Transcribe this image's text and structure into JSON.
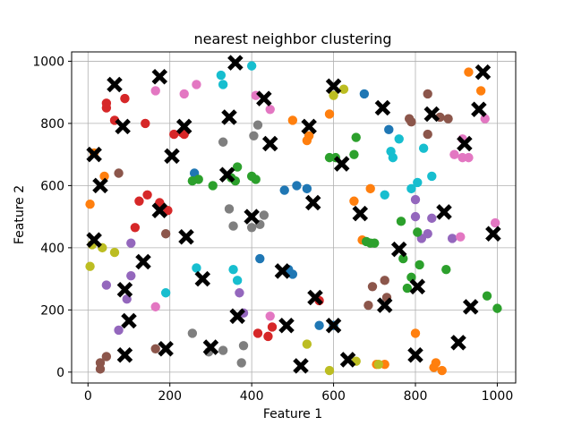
{
  "chart_data": {
    "type": "scatter",
    "title": "nearest neighbor clustering",
    "xlabel": "Feature 1",
    "ylabel": "Feature 2",
    "xlim": [
      -40,
      1045
    ],
    "ylim": [
      -35,
      1030
    ],
    "xticks": [
      0,
      200,
      400,
      600,
      800,
      1000
    ],
    "yticks": [
      0,
      200,
      400,
      600,
      800,
      1000
    ],
    "xtick_labels": [
      "0",
      "200",
      "400",
      "600",
      "800",
      "1000"
    ],
    "ytick_labels": [
      "0",
      "200",
      "400",
      "600",
      "800",
      "1000"
    ],
    "grid": true,
    "legend": "none",
    "colors": {
      "blue": "#1f77b4",
      "orange": "#ff7f0e",
      "green": "#2ca02c",
      "red": "#d62728",
      "purple": "#9467bd",
      "brown": "#8c564b",
      "pink": "#e377c2",
      "gray": "#7f7f7f",
      "olive": "#bcbd22",
      "cyan": "#17becf",
      "centroid": "#000000"
    },
    "points": [
      {
        "x": 5,
        "y": 540,
        "c": "orange"
      },
      {
        "x": 40,
        "y": 630,
        "c": "orange"
      },
      {
        "x": 15,
        "y": 705,
        "c": "orange"
      },
      {
        "x": 500,
        "y": 810,
        "c": "orange"
      },
      {
        "x": 535,
        "y": 745,
        "c": "orange"
      },
      {
        "x": 540,
        "y": 760,
        "c": "orange"
      },
      {
        "x": 590,
        "y": 830,
        "c": "orange"
      },
      {
        "x": 650,
        "y": 550,
        "c": "orange"
      },
      {
        "x": 670,
        "y": 425,
        "c": "orange"
      },
      {
        "x": 690,
        "y": 590,
        "c": "orange"
      },
      {
        "x": 705,
        "y": 25,
        "c": "orange"
      },
      {
        "x": 725,
        "y": 25,
        "c": "orange"
      },
      {
        "x": 800,
        "y": 125,
        "c": "orange"
      },
      {
        "x": 845,
        "y": 15,
        "c": "orange"
      },
      {
        "x": 850,
        "y": 30,
        "c": "orange"
      },
      {
        "x": 865,
        "y": 5,
        "c": "orange"
      },
      {
        "x": 930,
        "y": 965,
        "c": "orange"
      },
      {
        "x": 960,
        "y": 905,
        "c": "orange"
      },
      {
        "x": 45,
        "y": 850,
        "c": "red"
      },
      {
        "x": 45,
        "y": 865,
        "c": "red"
      },
      {
        "x": 65,
        "y": 810,
        "c": "red"
      },
      {
        "x": 90,
        "y": 880,
        "c": "red"
      },
      {
        "x": 140,
        "y": 800,
        "c": "red"
      },
      {
        "x": 210,
        "y": 765,
        "c": "red"
      },
      {
        "x": 230,
        "y": 770,
        "c": "red"
      },
      {
        "x": 235,
        "y": 765,
        "c": "red"
      },
      {
        "x": 115,
        "y": 465,
        "c": "red"
      },
      {
        "x": 125,
        "y": 550,
        "c": "red"
      },
      {
        "x": 145,
        "y": 570,
        "c": "red"
      },
      {
        "x": 175,
        "y": 545,
        "c": "red"
      },
      {
        "x": 195,
        "y": 520,
        "c": "red"
      },
      {
        "x": 415,
        "y": 125,
        "c": "red"
      },
      {
        "x": 440,
        "y": 115,
        "c": "red"
      },
      {
        "x": 450,
        "y": 145,
        "c": "red"
      },
      {
        "x": 565,
        "y": 230,
        "c": "red"
      },
      {
        "x": 30,
        "y": 30,
        "c": "brown"
      },
      {
        "x": 30,
        "y": 10,
        "c": "brown"
      },
      {
        "x": 45,
        "y": 50,
        "c": "brown"
      },
      {
        "x": 75,
        "y": 640,
        "c": "brown"
      },
      {
        "x": 165,
        "y": 75,
        "c": "brown"
      },
      {
        "x": 190,
        "y": 445,
        "c": "brown"
      },
      {
        "x": 685,
        "y": 215,
        "c": "brown"
      },
      {
        "x": 695,
        "y": 275,
        "c": "brown"
      },
      {
        "x": 725,
        "y": 295,
        "c": "brown"
      },
      {
        "x": 730,
        "y": 240,
        "c": "brown"
      },
      {
        "x": 785,
        "y": 815,
        "c": "brown"
      },
      {
        "x": 790,
        "y": 805,
        "c": "brown"
      },
      {
        "x": 830,
        "y": 895,
        "c": "brown"
      },
      {
        "x": 830,
        "y": 765,
        "c": "brown"
      },
      {
        "x": 860,
        "y": 820,
        "c": "brown"
      },
      {
        "x": 880,
        "y": 815,
        "c": "brown"
      },
      {
        "x": 45,
        "y": 280,
        "c": "purple"
      },
      {
        "x": 75,
        "y": 135,
        "c": "purple"
      },
      {
        "x": 95,
        "y": 235,
        "c": "purple"
      },
      {
        "x": 105,
        "y": 310,
        "c": "purple"
      },
      {
        "x": 105,
        "y": 415,
        "c": "purple"
      },
      {
        "x": 370,
        "y": 255,
        "c": "purple"
      },
      {
        "x": 380,
        "y": 190,
        "c": "purple"
      },
      {
        "x": 800,
        "y": 555,
        "c": "purple"
      },
      {
        "x": 800,
        "y": 500,
        "c": "purple"
      },
      {
        "x": 815,
        "y": 430,
        "c": "purple"
      },
      {
        "x": 830,
        "y": 445,
        "c": "purple"
      },
      {
        "x": 840,
        "y": 495,
        "c": "purple"
      },
      {
        "x": 890,
        "y": 430,
        "c": "purple"
      },
      {
        "x": 165,
        "y": 905,
        "c": "pink"
      },
      {
        "x": 235,
        "y": 895,
        "c": "pink"
      },
      {
        "x": 265,
        "y": 925,
        "c": "pink"
      },
      {
        "x": 410,
        "y": 890,
        "c": "pink"
      },
      {
        "x": 445,
        "y": 845,
        "c": "pink"
      },
      {
        "x": 165,
        "y": 210,
        "c": "pink"
      },
      {
        "x": 445,
        "y": 180,
        "c": "pink"
      },
      {
        "x": 895,
        "y": 700,
        "c": "pink"
      },
      {
        "x": 910,
        "y": 435,
        "c": "pink"
      },
      {
        "x": 915,
        "y": 750,
        "c": "pink"
      },
      {
        "x": 915,
        "y": 690,
        "c": "pink"
      },
      {
        "x": 930,
        "y": 690,
        "c": "pink"
      },
      {
        "x": 970,
        "y": 815,
        "c": "pink"
      },
      {
        "x": 995,
        "y": 480,
        "c": "pink"
      },
      {
        "x": 255,
        "y": 125,
        "c": "gray"
      },
      {
        "x": 295,
        "y": 65,
        "c": "gray"
      },
      {
        "x": 330,
        "y": 70,
        "c": "gray"
      },
      {
        "x": 330,
        "y": 740,
        "c": "gray"
      },
      {
        "x": 345,
        "y": 525,
        "c": "gray"
      },
      {
        "x": 355,
        "y": 470,
        "c": "gray"
      },
      {
        "x": 375,
        "y": 30,
        "c": "gray"
      },
      {
        "x": 380,
        "y": 85,
        "c": "gray"
      },
      {
        "x": 400,
        "y": 465,
        "c": "gray"
      },
      {
        "x": 405,
        "y": 760,
        "c": "gray"
      },
      {
        "x": 415,
        "y": 795,
        "c": "gray"
      },
      {
        "x": 420,
        "y": 475,
        "c": "gray"
      },
      {
        "x": 430,
        "y": 505,
        "c": "gray"
      },
      {
        "x": 5,
        "y": 340,
        "c": "olive"
      },
      {
        "x": 10,
        "y": 410,
        "c": "olive"
      },
      {
        "x": 35,
        "y": 400,
        "c": "olive"
      },
      {
        "x": 65,
        "y": 385,
        "c": "olive"
      },
      {
        "x": 535,
        "y": 90,
        "c": "olive"
      },
      {
        "x": 590,
        "y": 5,
        "c": "olive"
      },
      {
        "x": 600,
        "y": 890,
        "c": "olive"
      },
      {
        "x": 625,
        "y": 910,
        "c": "olive"
      },
      {
        "x": 655,
        "y": 35,
        "c": "olive"
      },
      {
        "x": 710,
        "y": 25,
        "c": "olive"
      },
      {
        "x": 190,
        "y": 255,
        "c": "cyan"
      },
      {
        "x": 265,
        "y": 335,
        "c": "cyan"
      },
      {
        "x": 325,
        "y": 955,
        "c": "cyan"
      },
      {
        "x": 330,
        "y": 925,
        "c": "cyan"
      },
      {
        "x": 355,
        "y": 330,
        "c": "cyan"
      },
      {
        "x": 365,
        "y": 295,
        "c": "cyan"
      },
      {
        "x": 400,
        "y": 985,
        "c": "cyan"
      },
      {
        "x": 725,
        "y": 570,
        "c": "cyan"
      },
      {
        "x": 740,
        "y": 710,
        "c": "cyan"
      },
      {
        "x": 745,
        "y": 690,
        "c": "cyan"
      },
      {
        "x": 760,
        "y": 750,
        "c": "cyan"
      },
      {
        "x": 790,
        "y": 590,
        "c": "cyan"
      },
      {
        "x": 805,
        "y": 610,
        "c": "cyan"
      },
      {
        "x": 820,
        "y": 720,
        "c": "cyan"
      },
      {
        "x": 840,
        "y": 630,
        "c": "cyan"
      },
      {
        "x": 260,
        "y": 640,
        "c": "blue"
      },
      {
        "x": 420,
        "y": 365,
        "c": "blue"
      },
      {
        "x": 480,
        "y": 585,
        "c": "blue"
      },
      {
        "x": 490,
        "y": 330,
        "c": "blue"
      },
      {
        "x": 500,
        "y": 315,
        "c": "blue"
      },
      {
        "x": 510,
        "y": 600,
        "c": "blue"
      },
      {
        "x": 535,
        "y": 590,
        "c": "blue"
      },
      {
        "x": 565,
        "y": 150,
        "c": "blue"
      },
      {
        "x": 600,
        "y": 150,
        "c": "blue"
      },
      {
        "x": 675,
        "y": 895,
        "c": "blue"
      },
      {
        "x": 735,
        "y": 780,
        "c": "blue"
      },
      {
        "x": 255,
        "y": 615,
        "c": "green"
      },
      {
        "x": 270,
        "y": 620,
        "c": "green"
      },
      {
        "x": 305,
        "y": 600,
        "c": "green"
      },
      {
        "x": 350,
        "y": 625,
        "c": "green"
      },
      {
        "x": 360,
        "y": 615,
        "c": "green"
      },
      {
        "x": 365,
        "y": 660,
        "c": "green"
      },
      {
        "x": 400,
        "y": 630,
        "c": "green"
      },
      {
        "x": 410,
        "y": 620,
        "c": "green"
      },
      {
        "x": 590,
        "y": 690,
        "c": "green"
      },
      {
        "x": 605,
        "y": 690,
        "c": "green"
      },
      {
        "x": 650,
        "y": 700,
        "c": "green"
      },
      {
        "x": 655,
        "y": 755,
        "c": "green"
      },
      {
        "x": 680,
        "y": 420,
        "c": "green"
      },
      {
        "x": 690,
        "y": 415,
        "c": "green"
      },
      {
        "x": 700,
        "y": 415,
        "c": "green"
      },
      {
        "x": 765,
        "y": 485,
        "c": "green"
      },
      {
        "x": 770,
        "y": 365,
        "c": "green"
      },
      {
        "x": 780,
        "y": 270,
        "c": "green"
      },
      {
        "x": 790,
        "y": 305,
        "c": "green"
      },
      {
        "x": 805,
        "y": 450,
        "c": "green"
      },
      {
        "x": 810,
        "y": 345,
        "c": "green"
      },
      {
        "x": 875,
        "y": 330,
        "c": "green"
      },
      {
        "x": 975,
        "y": 245,
        "c": "green"
      },
      {
        "x": 1000,
        "y": 205,
        "c": "green"
      }
    ],
    "centroids": [
      {
        "x": 15,
        "y": 700
      },
      {
        "x": 15,
        "y": 425
      },
      {
        "x": 30,
        "y": 600
      },
      {
        "x": 65,
        "y": 925
      },
      {
        "x": 85,
        "y": 790
      },
      {
        "x": 90,
        "y": 55
      },
      {
        "x": 90,
        "y": 265
      },
      {
        "x": 100,
        "y": 165
      },
      {
        "x": 135,
        "y": 355
      },
      {
        "x": 175,
        "y": 520
      },
      {
        "x": 175,
        "y": 950
      },
      {
        "x": 190,
        "y": 75
      },
      {
        "x": 205,
        "y": 695
      },
      {
        "x": 235,
        "y": 790
      },
      {
        "x": 240,
        "y": 435
      },
      {
        "x": 280,
        "y": 300
      },
      {
        "x": 300,
        "y": 80
      },
      {
        "x": 340,
        "y": 635
      },
      {
        "x": 345,
        "y": 820
      },
      {
        "x": 360,
        "y": 995
      },
      {
        "x": 365,
        "y": 180
      },
      {
        "x": 400,
        "y": 500
      },
      {
        "x": 430,
        "y": 880
      },
      {
        "x": 445,
        "y": 735
      },
      {
        "x": 475,
        "y": 325
      },
      {
        "x": 485,
        "y": 150
      },
      {
        "x": 520,
        "y": 20
      },
      {
        "x": 540,
        "y": 790
      },
      {
        "x": 550,
        "y": 545
      },
      {
        "x": 555,
        "y": 240
      },
      {
        "x": 600,
        "y": 920
      },
      {
        "x": 600,
        "y": 150
      },
      {
        "x": 620,
        "y": 670
      },
      {
        "x": 635,
        "y": 40
      },
      {
        "x": 665,
        "y": 510
      },
      {
        "x": 720,
        "y": 850
      },
      {
        "x": 725,
        "y": 215
      },
      {
        "x": 760,
        "y": 395
      },
      {
        "x": 800,
        "y": 55
      },
      {
        "x": 805,
        "y": 275
      },
      {
        "x": 840,
        "y": 830
      },
      {
        "x": 870,
        "y": 515
      },
      {
        "x": 905,
        "y": 95
      },
      {
        "x": 920,
        "y": 735
      },
      {
        "x": 935,
        "y": 210
      },
      {
        "x": 955,
        "y": 845
      },
      {
        "x": 965,
        "y": 965
      },
      {
        "x": 990,
        "y": 445
      }
    ]
  }
}
